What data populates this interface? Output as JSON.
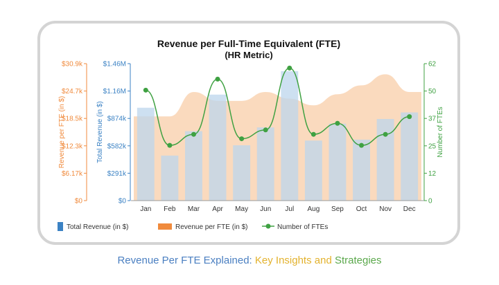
{
  "colors": {
    "revenue": "#3b82c4",
    "revenue_bar": "#bcd6ec",
    "per_fte": "#f08a3c",
    "per_fte_area": "#f9d3b3",
    "fte": "#3fa142",
    "caption_blue": "#4a7fc1",
    "caption_gold": "#e3b22d",
    "caption_green": "#5aa84b"
  },
  "chart_data": {
    "type": "bar",
    "title": "Revenue per Full-Time Equivalent (FTE)",
    "subtitle": "(HR Metric)",
    "categories": [
      "Jan",
      "Feb",
      "Mar",
      "Apr",
      "May",
      "Jun",
      "Jul",
      "Aug",
      "Sep",
      "Oct",
      "Nov",
      "Dec"
    ],
    "series": [
      {
        "name": "Total Revenue (in $)",
        "type": "bar",
        "axis": "left_inner",
        "values": [
          990000,
          480000,
          740000,
          1130000,
          590000,
          780000,
          1380000,
          640000,
          820000,
          650000,
          870000,
          940000
        ]
      },
      {
        "name": "Revenue per FTE (in $)",
        "type": "area",
        "axis": "left_outer",
        "values": [
          19000,
          19000,
          24500,
          22500,
          22500,
          24500,
          23000,
          21500,
          24000,
          26000,
          28500,
          24500
        ]
      },
      {
        "name": "Number of FTEs",
        "type": "line",
        "axis": "right",
        "values": [
          50,
          25,
          30,
          55,
          28,
          32,
          60,
          30,
          35,
          25,
          30,
          38
        ]
      }
    ],
    "axes": {
      "left_outer": {
        "label": "Revenue per FTE (in $)",
        "ticks": [
          "$30.9k",
          "$24.7k",
          "$18.5k",
          "$12.3k",
          "$6.17k",
          "$0"
        ],
        "range": [
          0,
          30900
        ]
      },
      "left_inner": {
        "label": "Total Revenue (in $)",
        "ticks": [
          "$1.46M",
          "$1.16M",
          "$874k",
          "$582k",
          "$291k",
          "$0"
        ],
        "range": [
          0,
          1460000
        ]
      },
      "right": {
        "label": "Number of FTEs",
        "ticks": [
          "62",
          "50",
          "37",
          "25",
          "12",
          "0"
        ],
        "range": [
          0,
          62
        ]
      }
    },
    "legend": {
      "position": "bottom",
      "items": [
        "Total Revenue (in $)",
        "Revenue per FTE (in $)",
        "Number of FTEs"
      ]
    },
    "grid": false
  },
  "caption": {
    "part1": "Revenue Per FTE Explained: ",
    "part2": "Key Insights",
    "part3": " and ",
    "part4": "Strategies"
  }
}
